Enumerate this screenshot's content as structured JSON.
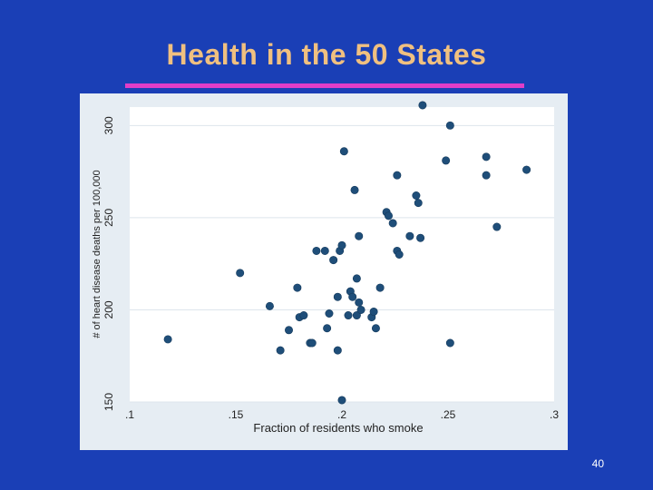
{
  "slide": {
    "title": "Health in the 50 States",
    "page_number": "40"
  },
  "colors": {
    "background": "#1a3fb6",
    "title": "#f0c080",
    "underline": "#e03ec8",
    "panel": "#e6edf3",
    "plot_area": "#ffffff",
    "marker": "#1f4e79"
  },
  "chart_data": {
    "type": "scatter",
    "title": "",
    "xlabel": "Fraction of residents who smoke",
    "ylabel": "# of heart disease deaths per 100,000",
    "xlim": [
      0.1,
      0.3
    ],
    "ylim": [
      150,
      310
    ],
    "xticks": [
      0.1,
      0.15,
      0.2,
      0.25,
      0.3
    ],
    "xtick_labels": [
      ".1",
      ".15",
      ".2",
      ".25",
      ".3"
    ],
    "yticks": [
      150,
      200,
      250,
      300
    ],
    "ytick_labels": [
      "150",
      "200",
      "250",
      "300"
    ],
    "grid": true,
    "points": [
      [
        0.118,
        184
      ],
      [
        0.152,
        220
      ],
      [
        0.166,
        202
      ],
      [
        0.171,
        178
      ],
      [
        0.175,
        189
      ],
      [
        0.179,
        212
      ],
      [
        0.18,
        196
      ],
      [
        0.182,
        197
      ],
      [
        0.185,
        182
      ],
      [
        0.186,
        182
      ],
      [
        0.188,
        232
      ],
      [
        0.192,
        232
      ],
      [
        0.193,
        190
      ],
      [
        0.194,
        198
      ],
      [
        0.196,
        227
      ],
      [
        0.198,
        207
      ],
      [
        0.198,
        178
      ],
      [
        0.199,
        232
      ],
      [
        0.2,
        235
      ],
      [
        0.2,
        151
      ],
      [
        0.201,
        286
      ],
      [
        0.203,
        197
      ],
      [
        0.204,
        210
      ],
      [
        0.205,
        207
      ],
      [
        0.206,
        265
      ],
      [
        0.207,
        217
      ],
      [
        0.207,
        197
      ],
      [
        0.208,
        240
      ],
      [
        0.208,
        204
      ],
      [
        0.209,
        200
      ],
      [
        0.214,
        196
      ],
      [
        0.215,
        199
      ],
      [
        0.216,
        190
      ],
      [
        0.218,
        212
      ],
      [
        0.221,
        253
      ],
      [
        0.222,
        251
      ],
      [
        0.224,
        247
      ],
      [
        0.226,
        273
      ],
      [
        0.226,
        232
      ],
      [
        0.227,
        230
      ],
      [
        0.232,
        240
      ],
      [
        0.235,
        262
      ],
      [
        0.236,
        258
      ],
      [
        0.237,
        239
      ],
      [
        0.238,
        311
      ],
      [
        0.249,
        281
      ],
      [
        0.251,
        300
      ],
      [
        0.251,
        182
      ],
      [
        0.268,
        283
      ],
      [
        0.268,
        273
      ],
      [
        0.273,
        245
      ],
      [
        0.287,
        276
      ]
    ]
  }
}
